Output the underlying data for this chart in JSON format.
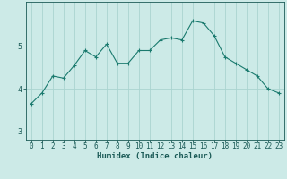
{
  "x": [
    0,
    1,
    2,
    3,
    4,
    5,
    6,
    7,
    8,
    9,
    10,
    11,
    12,
    13,
    14,
    15,
    16,
    17,
    18,
    19,
    20,
    21,
    22,
    23
  ],
  "y": [
    3.65,
    3.9,
    4.3,
    4.25,
    4.55,
    4.9,
    4.75,
    5.05,
    4.6,
    4.6,
    4.9,
    4.9,
    5.15,
    5.2,
    5.15,
    5.6,
    5.55,
    5.25,
    4.75,
    4.6,
    4.45,
    4.3,
    4.0,
    3.9
  ],
  "line_color": "#1a7a6e",
  "marker": "+",
  "marker_size": 3,
  "bg_color": "#cceae7",
  "grid_color": "#aad4d0",
  "axis_color": "#1a5a56",
  "xlabel": "Humidex (Indice chaleur)",
  "xlim": [
    -0.5,
    23.5
  ],
  "ylim": [
    2.8,
    6.05
  ],
  "yticks": [
    3,
    4,
    5
  ],
  "xticks": [
    0,
    1,
    2,
    3,
    4,
    5,
    6,
    7,
    8,
    9,
    10,
    11,
    12,
    13,
    14,
    15,
    16,
    17,
    18,
    19,
    20,
    21,
    22,
    23
  ],
  "xlabel_fontsize": 6.5,
  "tick_fontsize": 5.5
}
